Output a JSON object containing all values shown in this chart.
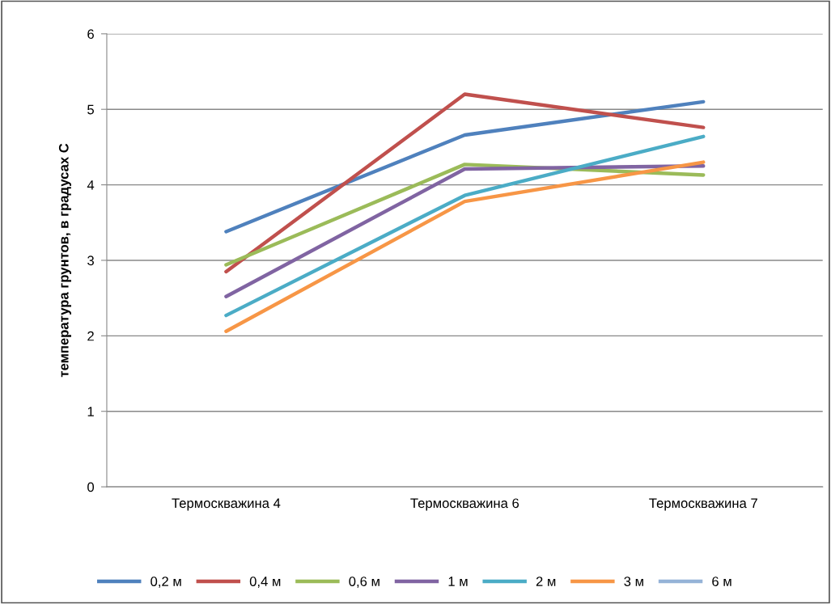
{
  "chart_data": {
    "type": "line",
    "ylabel": "температура грунтов, в градусах С",
    "categories": [
      "Термоскважина 4",
      "Термоскважина 6",
      "Термоскважина 7"
    ],
    "series": [
      {
        "name": "0,2 м",
        "color": "#4f81bd",
        "values": [
          3.38,
          4.66,
          5.1
        ]
      },
      {
        "name": "0,4 м",
        "color": "#c0504d",
        "values": [
          2.85,
          5.2,
          4.76
        ]
      },
      {
        "name": "0,6 м",
        "color": "#9bbb59",
        "values": [
          2.94,
          4.27,
          4.13
        ]
      },
      {
        "name": "1 м",
        "color": "#8064a2",
        "values": [
          2.52,
          4.21,
          4.25
        ]
      },
      {
        "name": "2 м",
        "color": "#4bacc6",
        "values": [
          2.27,
          3.86,
          4.64
        ]
      },
      {
        "name": "3 м",
        "color": "#f79646",
        "values": [
          2.06,
          3.78,
          4.3
        ]
      },
      {
        "name": "6 м",
        "color": "#95b3d7",
        "values": [
          null,
          null,
          null
        ]
      }
    ],
    "ylim": [
      0,
      6
    ],
    "yticks": [
      0,
      1,
      2,
      3,
      4,
      5,
      6
    ],
    "grid": "y",
    "legend": "bottom",
    "marker": "none",
    "line_style": "solid"
  }
}
